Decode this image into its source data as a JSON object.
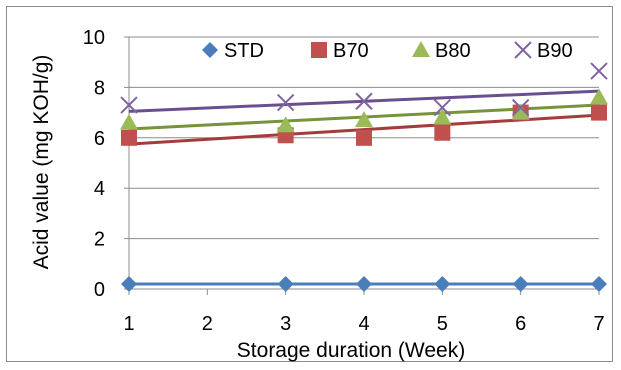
{
  "chart_data": {
    "type": "scatter",
    "xlabel": "Storage duration (Week)",
    "ylabel": "Acid value (mg KOH/g)",
    "xlim": [
      1,
      7
    ],
    "ylim": [
      0,
      10
    ],
    "xticks": [
      1,
      2,
      3,
      4,
      5,
      6,
      7
    ],
    "yticks": [
      0,
      2,
      4,
      6,
      8,
      10
    ],
    "grid": "horizontal",
    "legend_position": "top",
    "series": [
      {
        "name": "STD",
        "marker": "diamond",
        "color": "#4a7ebb",
        "x": [
          1,
          3,
          4,
          5,
          6,
          7
        ],
        "y": [
          0.2,
          0.2,
          0.2,
          0.2,
          0.2,
          0.2
        ],
        "trendline": [
          0.2,
          0.2
        ]
      },
      {
        "name": "B70",
        "marker": "square",
        "color": "#c0504d",
        "line_color": "#a33c3a",
        "x": [
          1,
          3,
          4,
          5,
          6,
          7
        ],
        "y": [
          6.0,
          6.1,
          6.0,
          6.2,
          7.0,
          7.0
        ],
        "trendline": [
          5.75,
          6.9
        ]
      },
      {
        "name": "B80",
        "marker": "triangle",
        "color": "#9bbb59",
        "line_color": "#77933c",
        "x": [
          1,
          3,
          4,
          5,
          6,
          7
        ],
        "y": [
          6.6,
          6.5,
          6.7,
          6.8,
          7.0,
          7.6
        ],
        "trendline": [
          6.35,
          7.3
        ]
      },
      {
        "name": "B90",
        "marker": "cross",
        "color": "#7f64a1",
        "line_color": "#6a4f8f",
        "x": [
          1,
          3,
          4,
          5,
          6,
          7
        ],
        "y": [
          7.3,
          7.4,
          7.45,
          7.2,
          7.2,
          8.65
        ],
        "trendline": [
          7.05,
          7.85
        ]
      }
    ]
  }
}
